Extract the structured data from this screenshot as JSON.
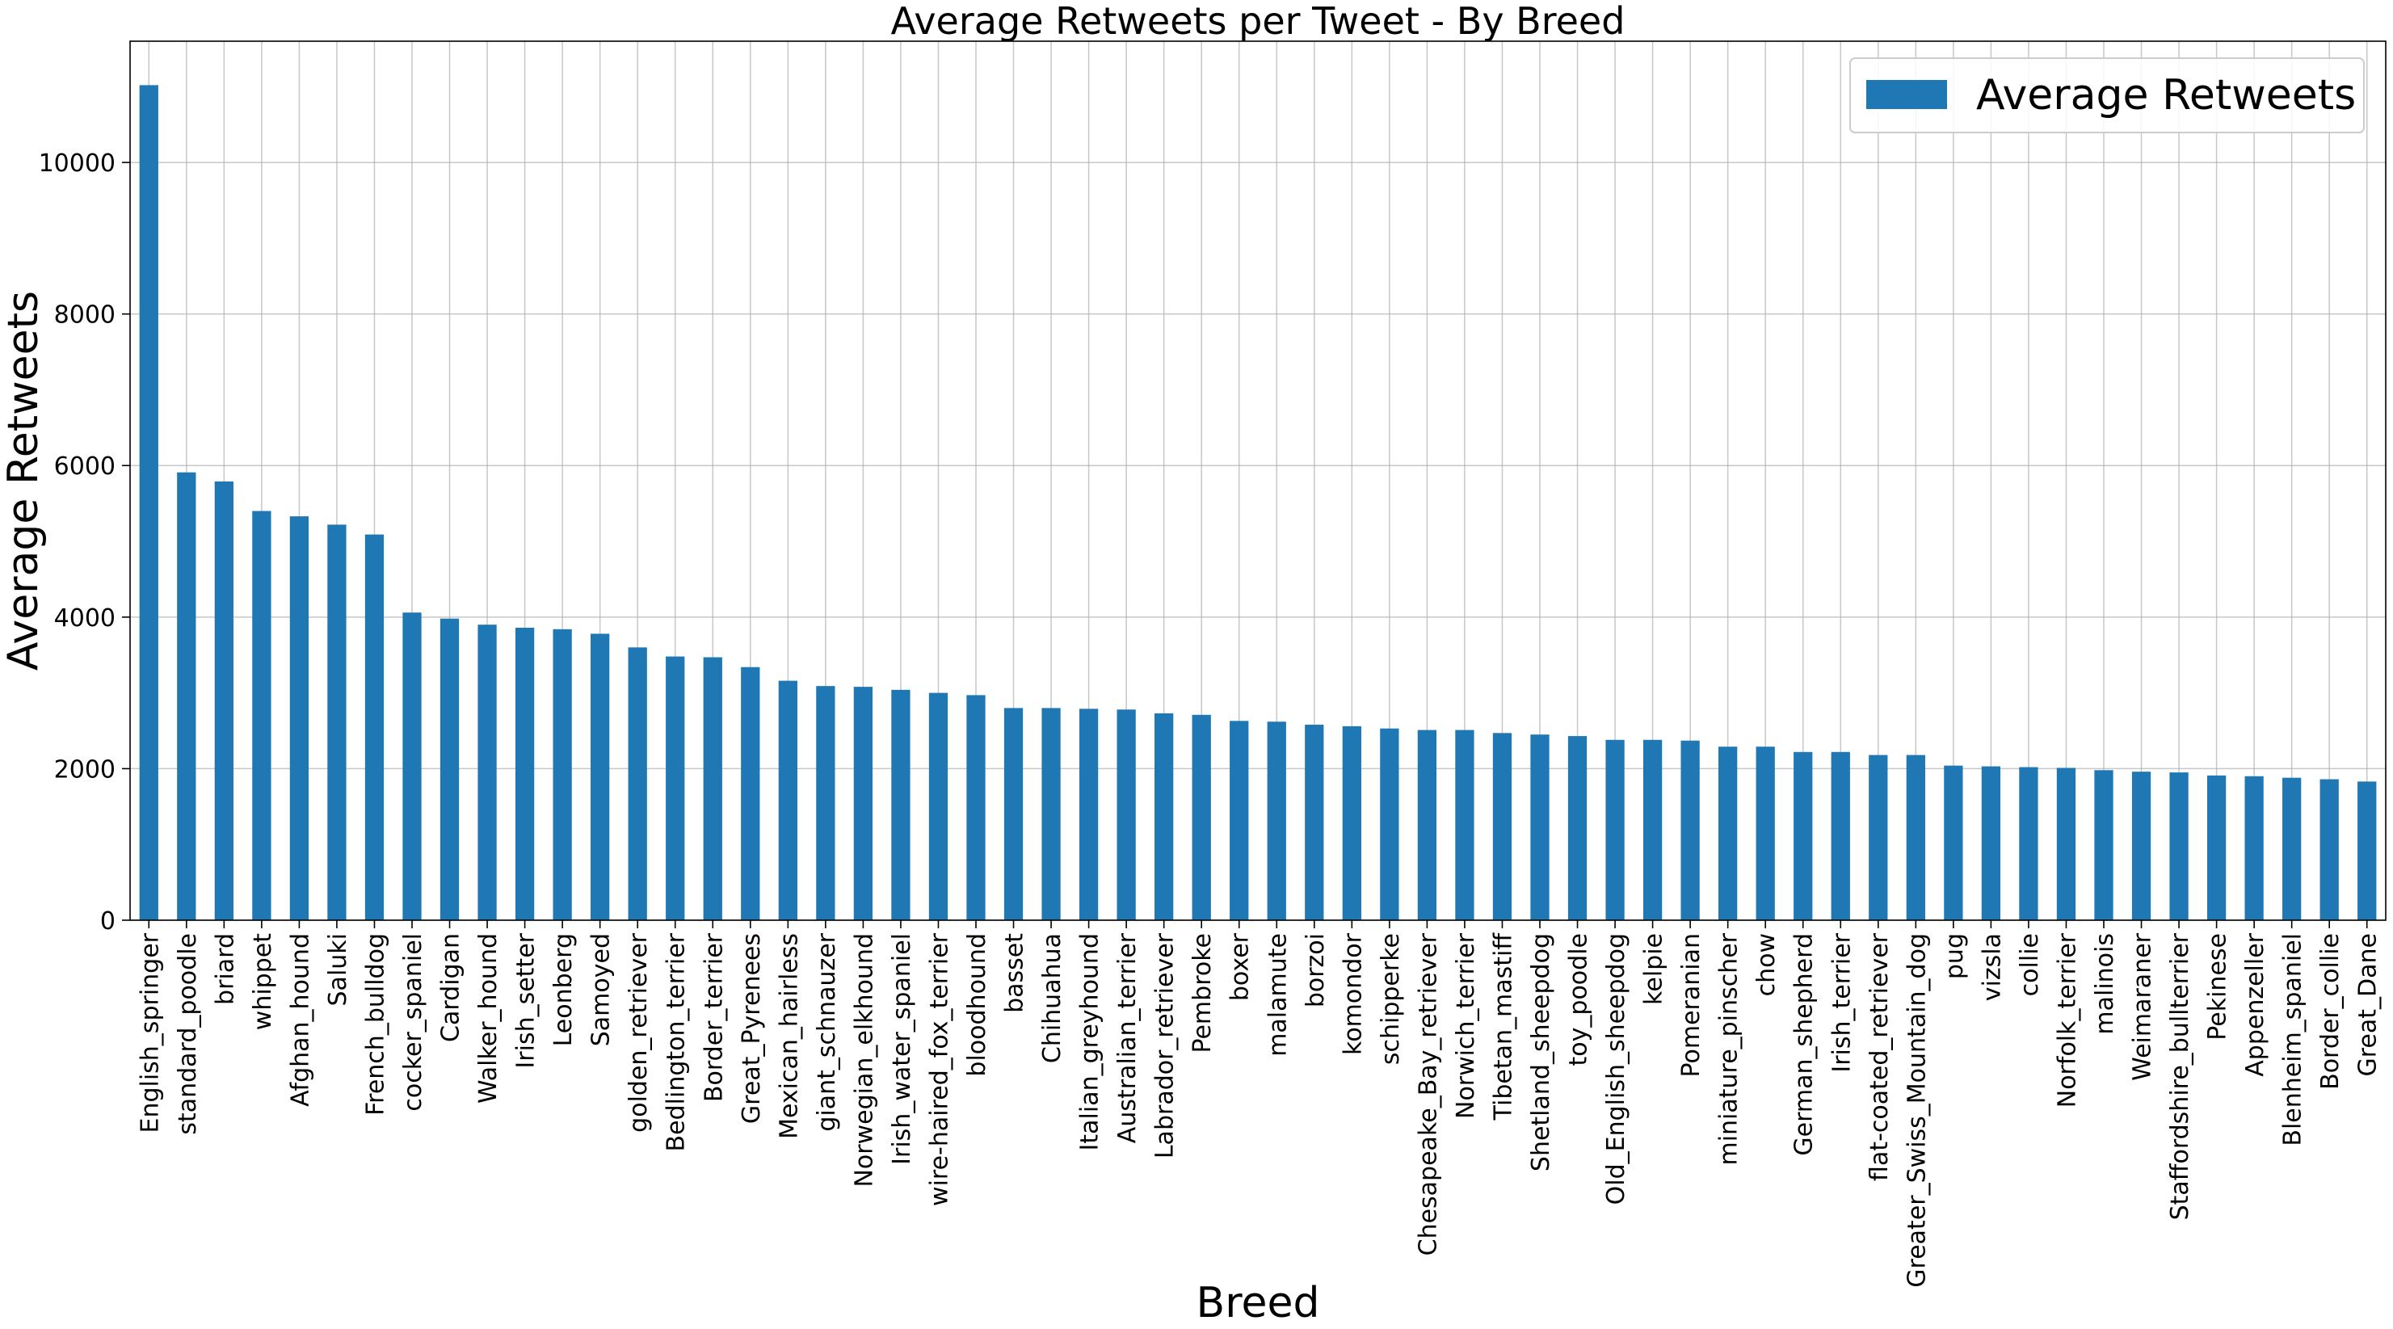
{
  "chart_data": {
    "type": "bar",
    "title": "Average Retweets per Tweet - By Breed",
    "xlabel": "Breed",
    "ylabel": "Average Retweets",
    "ylim": [
      0,
      11600
    ],
    "yticks": [
      0,
      2000,
      4000,
      6000,
      8000,
      10000
    ],
    "grid": true,
    "legend": {
      "position": "top-right"
    },
    "colors": {
      "bar": "#1f77b4"
    },
    "categories": [
      "English_springer",
      "standard_poodle",
      "briard",
      "whippet",
      "Afghan_hound",
      "Saluki",
      "French_bulldog",
      "cocker_spaniel",
      "Cardigan",
      "Walker_hound",
      "Irish_setter",
      "Leonberg",
      "Samoyed",
      "golden_retriever",
      "Bedlington_terrier",
      "Border_terrier",
      "Great_Pyrenees",
      "Mexican_hairless",
      "giant_schnauzer",
      "Norwegian_elkhound",
      "Irish_water_spaniel",
      "wire-haired_fox_terrier",
      "bloodhound",
      "basset",
      "Chihuahua",
      "Italian_greyhound",
      "Australian_terrier",
      "Labrador_retriever",
      "Pembroke",
      "boxer",
      "malamute",
      "borzoi",
      "komondor",
      "schipperke",
      "Chesapeake_Bay_retriever",
      "Norwich_terrier",
      "Tibetan_mastiff",
      "Shetland_sheepdog",
      "toy_poodle",
      "Old_English_sheepdog",
      "kelpie",
      "Pomeranian",
      "miniature_pinscher",
      "chow",
      "German_shepherd",
      "Irish_terrier",
      "flat-coated_retriever",
      "Greater_Swiss_Mountain_dog",
      "pug",
      "vizsla",
      "collie",
      "Norfolk_terrier",
      "malinois",
      "Weimaraner",
      "Staffordshire_bullterrier",
      "Pekinese",
      "Appenzeller",
      "Blenheim_spaniel",
      "Border_collie",
      "Great_Dane"
    ],
    "series": [
      {
        "name": "Average Retweets",
        "values": [
          11020,
          5910,
          5790,
          5400,
          5330,
          5220,
          5090,
          4060,
          3980,
          3900,
          3860,
          3840,
          3780,
          3600,
          3480,
          3470,
          3340,
          3160,
          3090,
          3080,
          3040,
          3000,
          2970,
          2800,
          2800,
          2790,
          2780,
          2730,
          2710,
          2630,
          2620,
          2580,
          2560,
          2530,
          2510,
          2510,
          2470,
          2450,
          2430,
          2380,
          2380,
          2370,
          2290,
          2290,
          2220,
          2220,
          2180,
          2180,
          2040,
          2030,
          2020,
          2010,
          1980,
          1960,
          1950,
          1910,
          1900,
          1880,
          1860,
          1830
        ]
      }
    ]
  }
}
